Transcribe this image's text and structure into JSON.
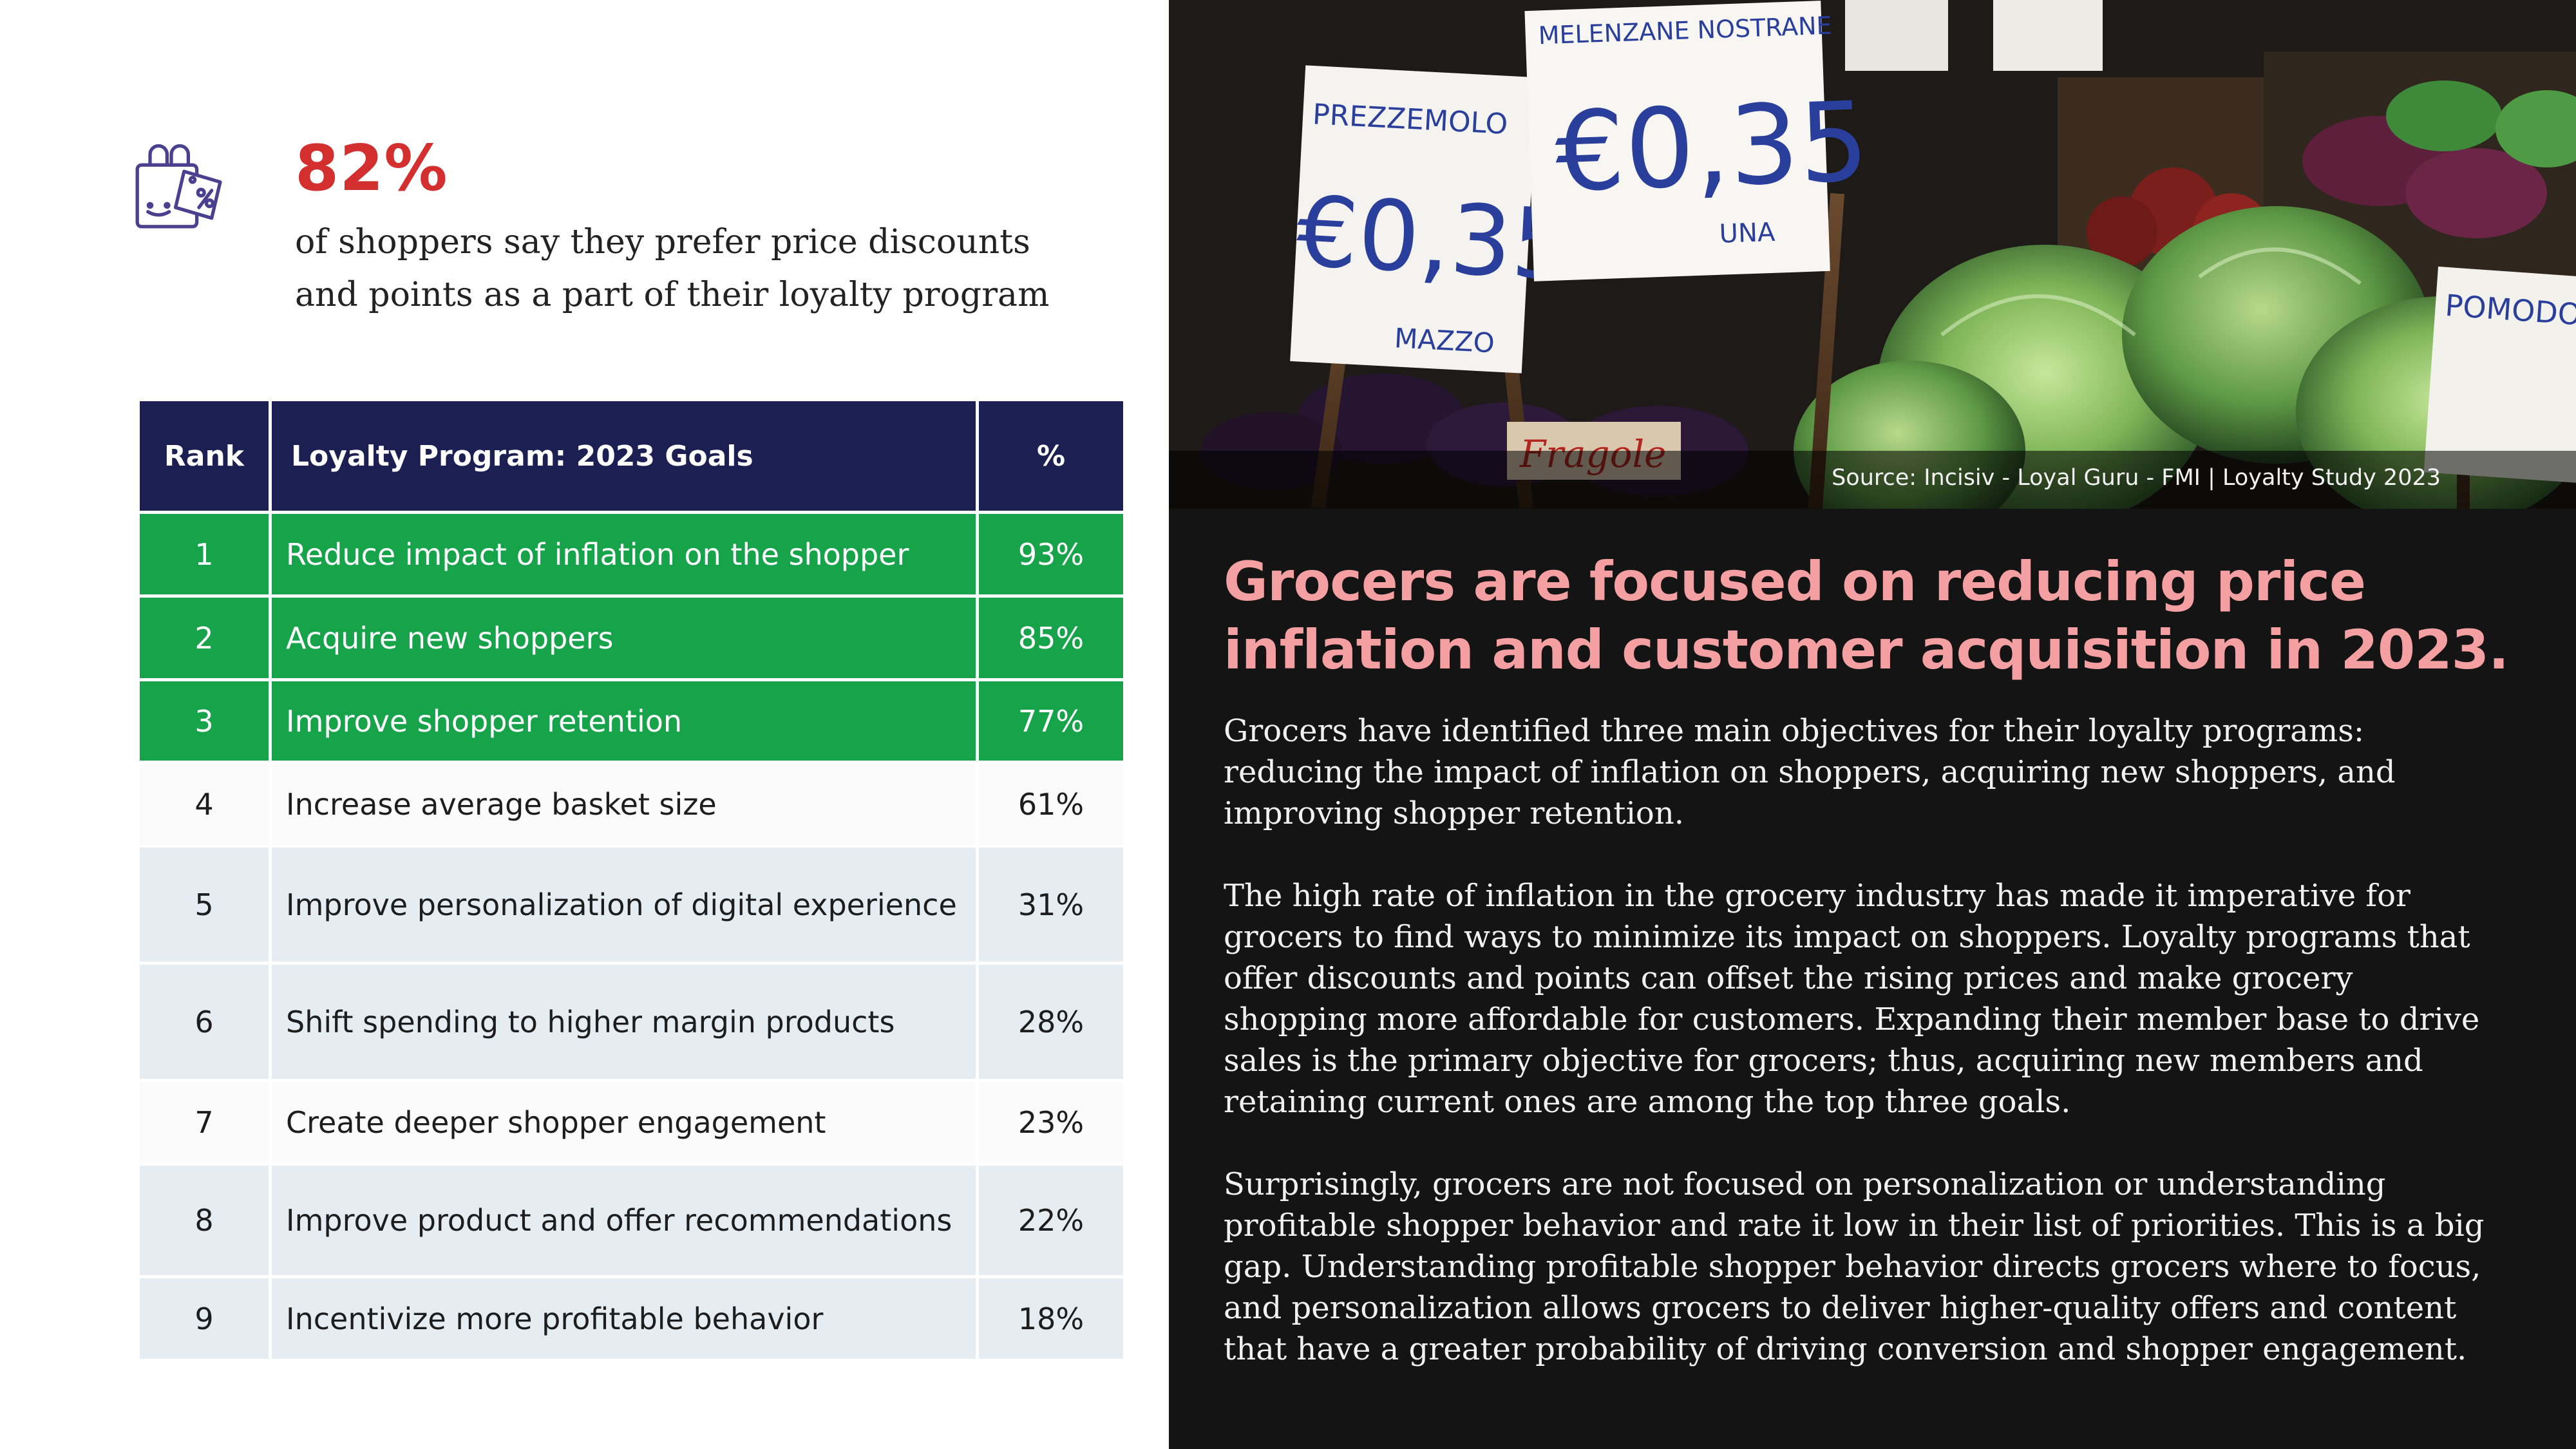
{
  "stat": {
    "value": "82%",
    "text": "of shoppers say they prefer price discounts and points as a part of their loyalty program",
    "icon": "shopping-bag-discount-icon",
    "color": "#d32f2f"
  },
  "table": {
    "headers": {
      "rank": "Rank",
      "goal": "Loyalty Program: 2023 Goals",
      "percent": "%"
    },
    "rows": [
      {
        "rank": "1",
        "goal": "Reduce impact of inflation on the shopper",
        "percent": "93%"
      },
      {
        "rank": "2",
        "goal": "Acquire new shoppers",
        "percent": "85%"
      },
      {
        "rank": "3",
        "goal": "Improve shopper retention",
        "percent": "77%"
      },
      {
        "rank": "4",
        "goal": "Increase average basket size",
        "percent": "61%"
      },
      {
        "rank": "5",
        "goal": "Improve personalization of digital experience",
        "percent": "31%"
      },
      {
        "rank": "6",
        "goal": "Shift spending to higher margin products",
        "percent": "28%"
      },
      {
        "rank": "7",
        "goal": "Create deeper shopper engagement",
        "percent": "23%"
      },
      {
        "rank": "8",
        "goal": "Improve product and offer recommendations",
        "percent": "22%"
      },
      {
        "rank": "9",
        "goal": "Incentivize more profitable behavior",
        "percent": "18%"
      }
    ],
    "colors": {
      "header": "#1b1f52",
      "highlight": "#16a34a",
      "shade": "#e6edf2"
    }
  },
  "photo": {
    "signs": [
      "PREZZEMOLO",
      "€0,35",
      "MAZZO",
      "MELENZANE NOSTRANE",
      "€0,35",
      "UNA",
      "POMODORI",
      "Fragole"
    ],
    "source_label": "Source: ",
    "source_text": "Incisiv - Loyal Guru - FMI | Loyalty Study 2023"
  },
  "article": {
    "headline": "Grocers are focused on reducing price inflation and customer acquisition in 2023.",
    "paragraphs": [
      "Grocers have identified three main objectives for their loyalty programs: reducing the impact of inflation on shoppers, acquiring new shoppers, and improving shopper retention.",
      "The high rate of inflation in the grocery industry has made it imperative for grocers to find ways to minimize its impact on shoppers. Loyalty programs that offer discounts and points can offset the rising prices and make grocery shopping more affordable for customers. Expanding their member base to drive sales is the primary objective for grocers; thus, acquiring new members and retaining current ones are among the top three goals.",
      "Surprisingly, grocers are not focused on personalization or understanding profitable shopper behavior and rate it low in their list of priorities. This is a big gap. Understanding profitable shopper behavior directs grocers where to focus, and personalization allows grocers to deliver higher-quality offers and content that have a greater probability of driving conversion and shopper engagement."
    ],
    "headline_color": "#f4a0a3"
  }
}
